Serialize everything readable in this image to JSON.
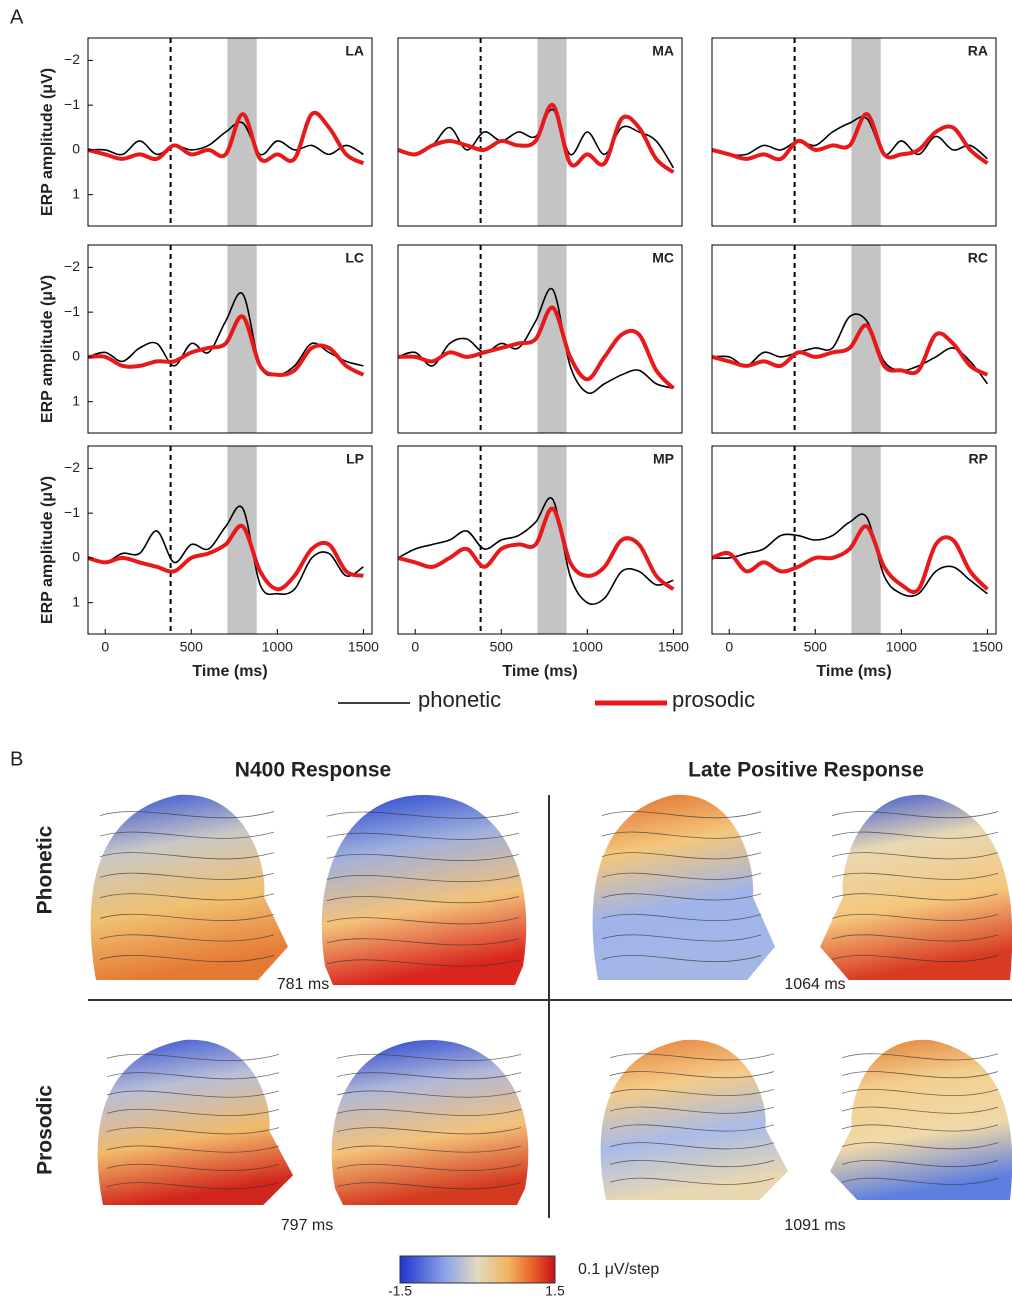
{
  "panel_a_label": "A",
  "chart_data": [
    {
      "type": "line",
      "title": "LA",
      "x": [
        -100,
        0,
        100,
        200,
        300,
        400,
        500,
        600,
        700,
        800,
        900,
        1000,
        1100,
        1200,
        1300,
        1400,
        1500
      ],
      "series": [
        {
          "name": "phonetic",
          "color": "#000000",
          "values": [
            0,
            0,
            0.1,
            -0.2,
            0.1,
            -0.1,
            0,
            -0.1,
            -0.4,
            -0.6,
            0.1,
            -0.2,
            0,
            -0.1,
            0.1,
            -0.1,
            0.1
          ]
        },
        {
          "name": "prosodic",
          "color": "#e8191b",
          "values": [
            0,
            0.1,
            0.2,
            0.1,
            0.2,
            -0.1,
            0.1,
            0,
            0.1,
            -0.8,
            0.2,
            0.1,
            0.2,
            -0.8,
            -0.5,
            0.1,
            0.3
          ]
        }
      ],
      "xlim": [
        -100,
        1550
      ],
      "ylim": [
        1.7,
        -2.5
      ],
      "reference_line": 380,
      "shaded_span": [
        710,
        880
      ],
      "yticks": [
        {
          "value": -2,
          "label": "−2"
        },
        {
          "value": -1,
          "label": "−1"
        },
        0,
        1
      ],
      "y_label": "ERP amplitude (μV)"
    },
    {
      "type": "line",
      "title": "MA",
      "x": [
        -100,
        0,
        100,
        200,
        300,
        400,
        500,
        600,
        700,
        800,
        900,
        1000,
        1100,
        1200,
        1300,
        1400,
        1500
      ],
      "series": [
        {
          "color": "#000000",
          "values": [
            0,
            0.1,
            -0.1,
            -0.5,
            0,
            -0.4,
            -0.2,
            -0.4,
            -0.3,
            -0.9,
            0.1,
            -0.4,
            0.1,
            -0.5,
            -0.4,
            -0.2,
            0.4
          ]
        },
        {
          "color": "#e8191b",
          "values": [
            0,
            0.1,
            -0.1,
            -0.2,
            -0.1,
            0,
            -0.2,
            -0.1,
            -0.2,
            -1.0,
            0.3,
            0.1,
            0.3,
            -0.7,
            -0.5,
            0.2,
            0.5
          ]
        }
      ],
      "xlim": [
        -100,
        1550
      ],
      "ylim": [
        1.7,
        -2.5
      ],
      "reference_line": 380,
      "shaded_span": [
        710,
        880
      ]
    },
    {
      "type": "line",
      "title": "RA",
      "x": [
        -100,
        0,
        100,
        200,
        300,
        400,
        500,
        600,
        700,
        800,
        900,
        1000,
        1100,
        1200,
        1300,
        1400,
        1500
      ],
      "series": [
        {
          "color": "#000000",
          "values": [
            0,
            0.1,
            0.1,
            -0.1,
            0,
            -0.2,
            -0.1,
            -0.4,
            -0.6,
            -0.7,
            0.1,
            -0.2,
            0.1,
            -0.3,
            0,
            -0.1,
            0.2
          ]
        },
        {
          "color": "#e8191b",
          "values": [
            0,
            0.1,
            0.2,
            0.1,
            0.2,
            -0.2,
            0,
            -0.1,
            -0.1,
            -0.8,
            0.1,
            0.1,
            0,
            -0.4,
            -0.5,
            0,
            0.3
          ]
        }
      ],
      "xlim": [
        -100,
        1550
      ],
      "ylim": [
        1.7,
        -2.5
      ],
      "reference_line": 380,
      "shaded_span": [
        710,
        880
      ]
    },
    {
      "type": "line",
      "title": "LC",
      "x": [
        -100,
        0,
        100,
        200,
        300,
        400,
        500,
        600,
        700,
        800,
        900,
        1000,
        1100,
        1200,
        1300,
        1400,
        1500
      ],
      "series": [
        {
          "color": "#000000",
          "values": [
            0,
            -0.1,
            0.1,
            -0.2,
            -0.3,
            0.2,
            -0.3,
            -0.1,
            -0.8,
            -1.4,
            0.2,
            0.4,
            0.2,
            -0.3,
            -0.1,
            0.1,
            0.2
          ]
        },
        {
          "color": "#e8191b",
          "values": [
            0,
            0,
            0.2,
            0.2,
            0.1,
            0.1,
            -0.1,
            -0.2,
            -0.3,
            -0.9,
            0.2,
            0.4,
            0.3,
            -0.2,
            -0.2,
            0.2,
            0.4
          ]
        }
      ],
      "xlim": [
        -100,
        1550
      ],
      "ylim": [
        1.7,
        -2.5
      ],
      "reference_line": 380,
      "shaded_span": [
        710,
        880
      ],
      "yticks": [
        {
          "value": -2,
          "label": "−2"
        },
        {
          "value": -1,
          "label": "−1"
        },
        0,
        1
      ],
      "y_label": "ERP amplitude (μV)"
    },
    {
      "type": "line",
      "title": "MC",
      "x": [
        -100,
        0,
        100,
        200,
        300,
        400,
        500,
        600,
        700,
        800,
        900,
        1000,
        1100,
        1200,
        1300,
        1400,
        1500
      ],
      "series": [
        {
          "color": "#000000",
          "values": [
            0,
            -0.1,
            0.2,
            -0.3,
            -0.4,
            -0.1,
            -0.3,
            -0.2,
            -0.8,
            -1.5,
            0.2,
            0.8,
            0.6,
            0.4,
            0.3,
            0.6,
            0.7
          ]
        },
        {
          "color": "#e8191b",
          "values": [
            0,
            0,
            0.1,
            -0.1,
            0,
            -0.1,
            -0.2,
            -0.3,
            -0.4,
            -1.1,
            0,
            0.5,
            0,
            -0.5,
            -0.5,
            0.3,
            0.7
          ]
        }
      ],
      "xlim": [
        -100,
        1550
      ],
      "ylim": [
        1.7,
        -2.5
      ],
      "reference_line": 380,
      "shaded_span": [
        710,
        880
      ]
    },
    {
      "type": "line",
      "title": "RC",
      "x": [
        -100,
        0,
        100,
        200,
        300,
        400,
        500,
        600,
        700,
        800,
        900,
        1000,
        1100,
        1200,
        1300,
        1400,
        1500
      ],
      "series": [
        {
          "color": "#000000",
          "values": [
            0,
            0,
            0.2,
            -0.1,
            0,
            -0.1,
            -0.2,
            -0.2,
            -0.9,
            -0.8,
            0.1,
            0.3,
            0.2,
            0,
            -0.2,
            0.1,
            0.6
          ]
        },
        {
          "color": "#e8191b",
          "values": [
            0,
            0.1,
            0.2,
            0.1,
            0.2,
            -0.1,
            0,
            -0.1,
            -0.2,
            -0.7,
            0.2,
            0.3,
            0.3,
            -0.5,
            -0.3,
            0.2,
            0.4
          ]
        }
      ],
      "xlim": [
        -100,
        1550
      ],
      "ylim": [
        1.7,
        -2.5
      ],
      "reference_line": 380,
      "shaded_span": [
        710,
        880
      ]
    },
    {
      "type": "line",
      "title": "LP",
      "x": [
        -100,
        0,
        100,
        200,
        300,
        400,
        500,
        600,
        700,
        800,
        900,
        1000,
        1100,
        1200,
        1300,
        1400,
        1500
      ],
      "series": [
        {
          "color": "#000000",
          "values": [
            0,
            0.1,
            -0.1,
            -0.1,
            -0.6,
            0.1,
            -0.3,
            -0.2,
            -0.7,
            -1.1,
            0.6,
            0.8,
            0.7,
            0,
            -0.1,
            0.4,
            0.2
          ]
        },
        {
          "color": "#e8191b",
          "values": [
            0,
            0.1,
            0,
            0.1,
            0.2,
            0.3,
            0,
            -0.1,
            -0.3,
            -0.7,
            0.3,
            0.7,
            0.4,
            -0.2,
            -0.3,
            0.3,
            0.4
          ]
        }
      ],
      "xlim": [
        -100,
        1550
      ],
      "ylim": [
        1.7,
        -2.5
      ],
      "reference_line": 380,
      "shaded_span": [
        710,
        880
      ],
      "yticks": [
        {
          "value": -2,
          "label": "−2"
        },
        {
          "value": -1,
          "label": "−1"
        },
        0,
        1
      ],
      "y_label": "ERP amplitude (μV)",
      "xticks": [
        0,
        500,
        1000,
        1500
      ],
      "x_label": "Time (ms)"
    },
    {
      "type": "line",
      "title": "MP",
      "x": [
        -100,
        0,
        100,
        200,
        300,
        400,
        500,
        600,
        700,
        800,
        900,
        1000,
        1100,
        1200,
        1300,
        1400,
        1500
      ],
      "series": [
        {
          "color": "#000000",
          "values": [
            0,
            -0.2,
            -0.3,
            -0.4,
            -0.6,
            -0.2,
            -0.4,
            -0.5,
            -0.8,
            -1.3,
            0.4,
            1.0,
            0.9,
            0.3,
            0.3,
            0.6,
            0.5
          ]
        },
        {
          "color": "#e8191b",
          "values": [
            0,
            0.1,
            0.2,
            0,
            -0.2,
            0.2,
            -0.2,
            -0.3,
            -0.3,
            -1.1,
            0.1,
            0.4,
            0.2,
            -0.4,
            -0.3,
            0.4,
            0.7
          ]
        }
      ],
      "xlim": [
        -100,
        1550
      ],
      "ylim": [
        1.7,
        -2.5
      ],
      "reference_line": 380,
      "shaded_span": [
        710,
        880
      ],
      "xticks": [
        0,
        500,
        1000,
        1500
      ],
      "x_label": "Time (ms)"
    },
    {
      "type": "line",
      "title": "RP",
      "x": [
        -100,
        0,
        100,
        200,
        300,
        400,
        500,
        600,
        700,
        800,
        900,
        1000,
        1100,
        1200,
        1300,
        1400,
        1500
      ],
      "series": [
        {
          "color": "#000000",
          "values": [
            0,
            0,
            -0.1,
            -0.2,
            -0.5,
            -0.5,
            -0.4,
            -0.5,
            -0.8,
            -0.9,
            0.4,
            0.8,
            0.8,
            0.3,
            0.2,
            0.5,
            0.8
          ]
        },
        {
          "color": "#e8191b",
          "values": [
            0,
            -0.1,
            0.3,
            0.1,
            0.3,
            0.2,
            0,
            0,
            -0.2,
            -0.7,
            0.2,
            0.6,
            0.7,
            -0.3,
            -0.4,
            0.3,
            0.7
          ]
        }
      ],
      "xlim": [
        -100,
        1550
      ],
      "ylim": [
        1.7,
        -2.5
      ],
      "reference_line": 380,
      "shaded_span": [
        710,
        880
      ],
      "xticks": [
        0,
        500,
        1000,
        1500
      ],
      "x_label": "Time (ms)"
    }
  ],
  "panel_b": {
    "label": "B",
    "columns": [
      "N400 Response",
      "Late Positive Response"
    ],
    "rows": [
      "Phonetic",
      "Prosodic"
    ],
    "latencies": [
      "781 ms",
      "1064 ms",
      "797 ms",
      "1091 ms"
    ],
    "colorbar": {
      "min": -1.5,
      "max": 1.5,
      "step_label": "0.1 μV/step"
    }
  }
}
